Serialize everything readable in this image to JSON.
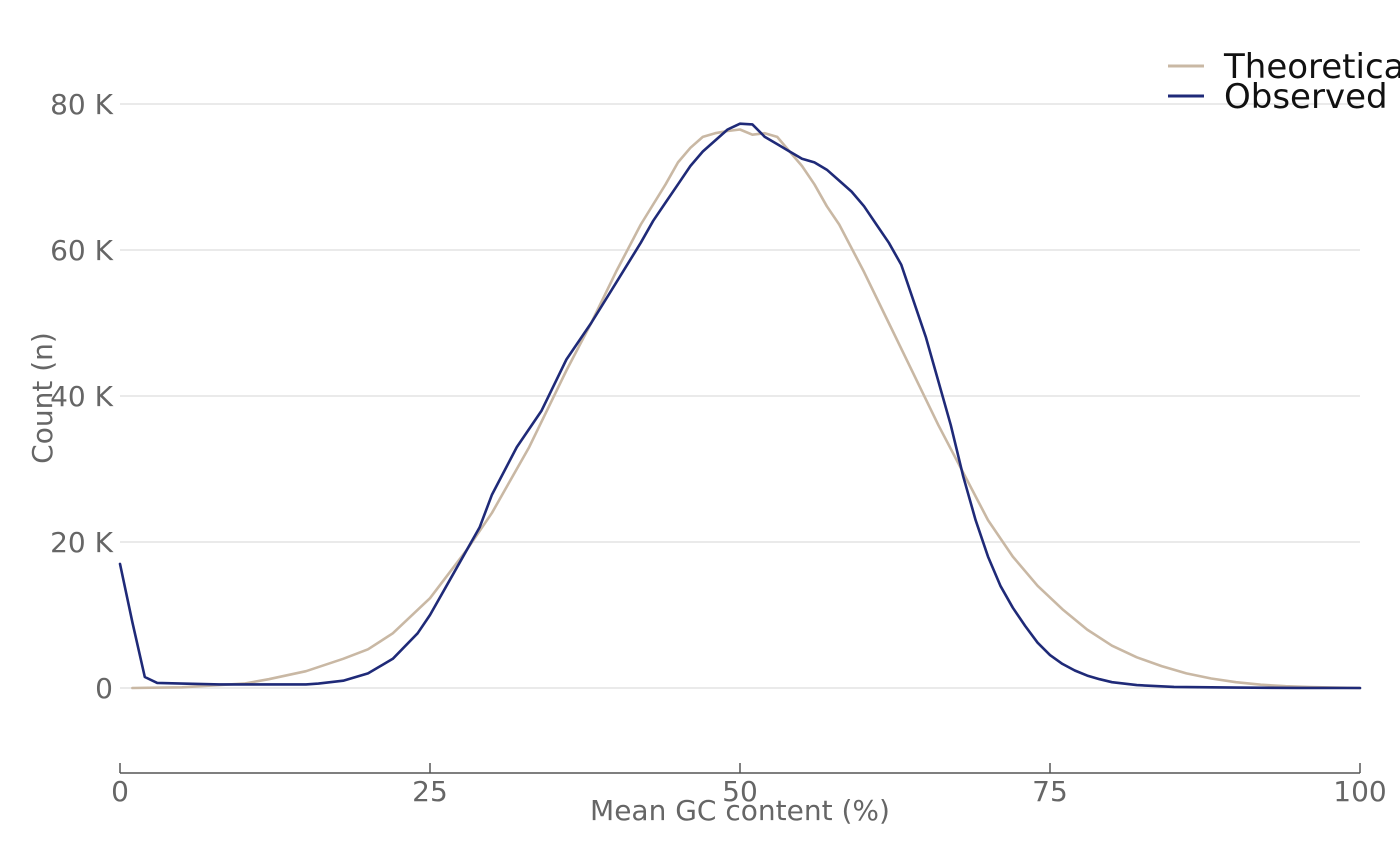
{
  "chart_data": {
    "type": "line",
    "xlabel": "Mean GC content (%)",
    "ylabel": "Count (n)",
    "xlim": [
      0,
      100
    ],
    "ylim": [
      -11000,
      86000
    ],
    "x_ticks": [
      0,
      25,
      50,
      75,
      100
    ],
    "x_tick_labels": [
      "0",
      "25",
      "50",
      "75",
      "100"
    ],
    "y_ticks": [
      0,
      20000,
      40000,
      60000,
      80000
    ],
    "y_tick_labels": [
      "0",
      "20 K",
      "40 K",
      "60 K",
      "80 K"
    ],
    "grid": "horizontal",
    "legend_position": "top-right",
    "series": [
      {
        "name": "Theoretical",
        "color": "#c9b8a4",
        "x": [
          1,
          5,
          10,
          12,
          15,
          18,
          20,
          22,
          25,
          28,
          30,
          33,
          36,
          38,
          40,
          42,
          44,
          45,
          46,
          47,
          48,
          49,
          50,
          51,
          52,
          53,
          54,
          55,
          56,
          57,
          58,
          60,
          62,
          64,
          66,
          68,
          70,
          72,
          74,
          76,
          78,
          80,
          82,
          84,
          86,
          88,
          90,
          92,
          94,
          96,
          98,
          100
        ],
        "values": [
          0,
          100,
          600,
          1200,
          2300,
          4000,
          5300,
          7500,
          12300,
          19000,
          24000,
          33000,
          43500,
          50000,
          57000,
          63500,
          69000,
          72000,
          74000,
          75500,
          76000,
          76300,
          76500,
          75800,
          76000,
          75500,
          73500,
          71500,
          69000,
          66000,
          63500,
          57000,
          50000,
          43000,
          36000,
          29500,
          23000,
          18000,
          14000,
          10800,
          8000,
          5800,
          4200,
          3000,
          2000,
          1300,
          800,
          450,
          250,
          120,
          50,
          0
        ]
      },
      {
        "name": "Observed",
        "color": "#1f2a78",
        "x": [
          0,
          1,
          2,
          3,
          5,
          8,
          10,
          12,
          15,
          16,
          18,
          20,
          22,
          24,
          25,
          27,
          29,
          30,
          32,
          34,
          36,
          38,
          40,
          42,
          43,
          44,
          45,
          46,
          47,
          48,
          49,
          50,
          51,
          52,
          53,
          54,
          55,
          56,
          57,
          58,
          59,
          60,
          61,
          62,
          63,
          64,
          65,
          66,
          67,
          68,
          69,
          70,
          71,
          72,
          73,
          74,
          75,
          76,
          77,
          78,
          79,
          80,
          82,
          85,
          90,
          95,
          100
        ],
        "values": [
          17000,
          9000,
          1500,
          700,
          600,
          500,
          500,
          500,
          500,
          600,
          1000,
          2000,
          4000,
          7500,
          10000,
          16000,
          22000,
          26500,
          33000,
          38000,
          45000,
          50000,
          55500,
          61000,
          64000,
          66500,
          69000,
          71500,
          73500,
          75000,
          76500,
          77300,
          77200,
          75500,
          74500,
          73500,
          72500,
          72000,
          71000,
          69500,
          68000,
          66000,
          63500,
          61000,
          58000,
          53000,
          48000,
          42000,
          36000,
          29000,
          23000,
          18000,
          14000,
          11000,
          8500,
          6200,
          4500,
          3300,
          2400,
          1700,
          1200,
          800,
          400,
          150,
          50,
          10,
          0
        ]
      }
    ]
  },
  "legend": {
    "items": [
      {
        "label": "Theoretical",
        "color": "#c9b8a4"
      },
      {
        "label": "Observed",
        "color": "#1f2a78"
      }
    ]
  }
}
